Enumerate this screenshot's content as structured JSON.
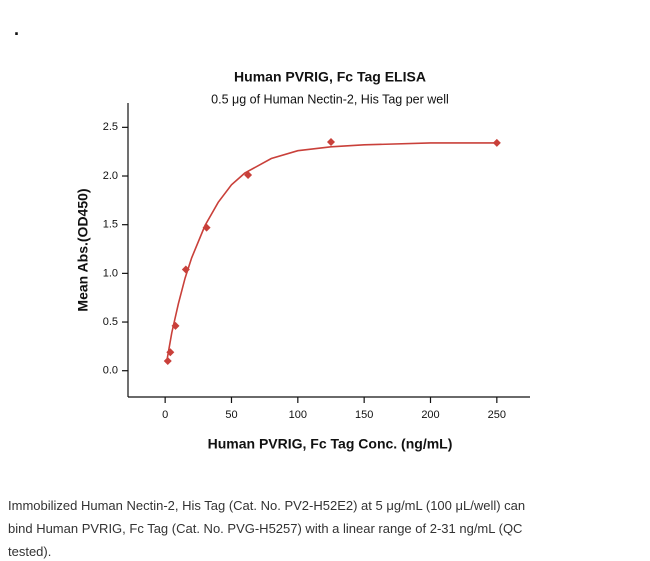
{
  "dot": ".",
  "chart_data": {
    "type": "scatter",
    "title": "Human PVRIG, Fc Tag ELISA",
    "subtitle": "0.5 μg of Human Nectin-2, His Tag per well",
    "x_label": "Human PVRIG, Fc Tag Conc. (ng/mL)",
    "y_label": "Mean Abs.(OD450)",
    "xlim": [
      -28,
      275
    ],
    "ylim": [
      -0.27,
      2.75
    ],
    "xticks": [
      0,
      50,
      100,
      150,
      200,
      250
    ],
    "yticks": [
      {
        "value": 0,
        "label": "0.0"
      },
      0.5,
      {
        "value": 1,
        "label": "1.0"
      },
      1.5,
      {
        "value": 2,
        "label": "2.0"
      },
      2.5
    ],
    "series": [
      {
        "color": "#c9403a",
        "marker": "diamond",
        "x": [
          1.95,
          3.9,
          7.8,
          15.6,
          31.25,
          62.5,
          125,
          250
        ],
        "values": [
          0.1,
          0.19,
          0.46,
          1.04,
          1.47,
          2.01,
          2.35,
          2.34
        ]
      },
      {
        "color": "#c9403a",
        "marker": "line",
        "x": [
          1,
          5,
          10,
          15,
          20,
          30,
          40,
          50,
          60,
          80,
          100,
          125,
          150,
          200,
          250
        ],
        "values": [
          0.08,
          0.39,
          0.69,
          0.95,
          1.16,
          1.49,
          1.73,
          1.91,
          2.03,
          2.18,
          2.26,
          2.3,
          2.32,
          2.34,
          2.34
        ]
      }
    ]
  },
  "caption": [
    "Immobilized Human Nectin-2, His Tag (Cat. No. PV2-H52E2) at 5 μg/mL (100 μL/well) can",
    "bind Human PVRIG, Fc Tag (Cat. No. PVG-H5257) with a linear range of 2-31 ng/mL (QC",
    "tested)."
  ]
}
